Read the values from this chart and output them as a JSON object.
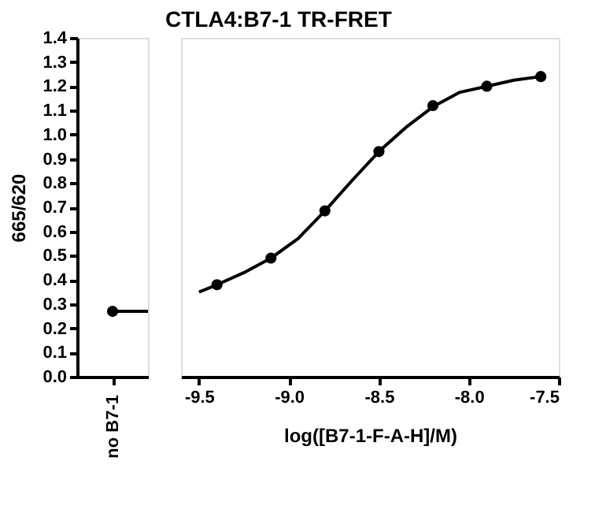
{
  "chart_data": [
    {
      "type": "scatter",
      "ylabel": "665/620",
      "categories": [
        "no B7-1"
      ],
      "ylim": [
        0,
        1.4
      ],
      "yticks": [
        {
          "value": 0,
          "label": "0.0"
        },
        0.1,
        0.2,
        0.3,
        0.4,
        0.5,
        0.6,
        0.7,
        0.8,
        0.9,
        {
          "value": 1,
          "label": "1.0"
        },
        1.1,
        1.2,
        1.3,
        1.4
      ],
      "grid": false,
      "marker": "circle",
      "series": [
        {
          "color": "#000000",
          "values": [
            0.27
          ]
        }
      ],
      "ref_lines": [
        {
          "axis": "y",
          "value": 0.27,
          "color": "#000000"
        }
      ]
    },
    {
      "type": "scatter",
      "title": "CTLA4:B7-1 TR-FRET",
      "xlabel": "log([B7-1-F-A-H]/M)",
      "xlim": [
        -9.6,
        -7.5
      ],
      "xticks": [
        {
          "value": -9.5,
          "label": "-9.5"
        },
        {
          "value": -9,
          "label": "-9.0"
        },
        {
          "value": -8.5,
          "label": "-8.5"
        },
        {
          "value": -8,
          "label": "-8.0"
        },
        {
          "value": -7.5,
          "label": "-7.5"
        }
      ],
      "ylim": [
        0,
        1.4
      ],
      "tick_labels": "x",
      "grid": false,
      "series": [
        {
          "type": "scatter",
          "marker": "circle",
          "color": "#000000",
          "x": [
            -9.4,
            -9.1,
            -8.8,
            -8.5,
            -8.2,
            -7.9,
            -7.6
          ],
          "values": [
            0.38,
            0.49,
            0.685,
            0.93,
            1.12,
            1.2,
            1.24
          ]
        },
        {
          "type": "line",
          "marker": "none",
          "line_style": "solid",
          "color": "#000000",
          "x": [
            -9.5,
            -9.4,
            -9.25,
            -9.1,
            -8.95,
            -8.8,
            -8.65,
            -8.5,
            -8.35,
            -8.2,
            -8.05,
            -7.9,
            -7.75,
            -7.6
          ],
          "values": [
            0.35,
            0.38,
            0.43,
            0.49,
            0.57,
            0.685,
            0.81,
            0.93,
            1.03,
            1.115,
            1.175,
            1.2,
            1.225,
            1.24
          ]
        }
      ]
    }
  ]
}
